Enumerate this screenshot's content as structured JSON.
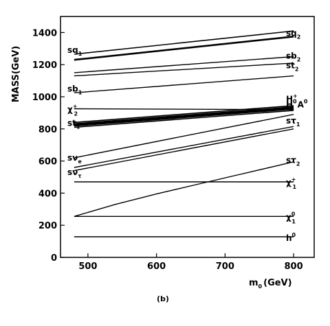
{
  "chart_data": {
    "type": "line",
    "xlabel": "m0 (GeV)",
    "xlabel_parts": {
      "base": "m",
      "sub": "0",
      "rest": "(GeV)"
    },
    "ylabel": "MASS(GeV)",
    "panel_label": "(b)",
    "xlim": [
      460,
      830
    ],
    "ylim": [
      0,
      1500
    ],
    "xticks": [
      500,
      600,
      700,
      800
    ],
    "yticks": [
      0,
      200,
      400,
      600,
      800,
      1000,
      1200,
      1400
    ],
    "grid": false,
    "series": [
      {
        "name": "sq2",
        "x": [
          480,
          800
        ],
        "y": [
          1265,
          1410
        ],
        "lw": 1.6
      },
      {
        "name": "sq1 (b)",
        "x": [
          480,
          800
        ],
        "y": [
          1230,
          1375
        ],
        "lw": 2.6
      },
      {
        "name": "sb2",
        "x": [
          480,
          800
        ],
        "y": [
          1150,
          1250
        ],
        "lw": 1.4
      },
      {
        "name": "st2",
        "x": [
          480,
          800
        ],
        "y": [
          1130,
          1210
        ],
        "lw": 1.4
      },
      {
        "name": "sb1",
        "x": [
          480,
          800
        ],
        "y": [
          1025,
          1130
        ],
        "lw": 1.4
      },
      {
        "name": "chi2+",
        "x": [
          480,
          800
        ],
        "y": [
          925,
          920
        ],
        "lw": 1.4
      },
      {
        "name": "H+",
        "x": [
          480,
          800
        ],
        "y": [
          840,
          945
        ],
        "lw": 1.6
      },
      {
        "name": "H0",
        "x": [
          480,
          800
        ],
        "y": [
          830,
          935
        ],
        "lw": 2.6
      },
      {
        "name": "A0",
        "x": [
          480,
          800
        ],
        "y": [
          820,
          925
        ],
        "lw": 2.6
      },
      {
        "name": "st1",
        "x": [
          480,
          800
        ],
        "y": [
          810,
          915
        ],
        "lw": 1.6
      },
      {
        "name": "stau1",
        "x": [
          480,
          800
        ],
        "y": [
          620,
          890
        ],
        "lw": 1.4
      },
      {
        "name": "snu_e",
        "x": [
          480,
          800
        ],
        "y": [
          560,
          815
        ],
        "lw": 1.4
      },
      {
        "name": "snu_tau",
        "x": [
          480,
          800
        ],
        "y": [
          540,
          800
        ],
        "lw": 1.4
      },
      {
        "name": "stau2",
        "x": [
          480,
          540,
          600,
          660,
          720,
          800
        ],
        "y": [
          255,
          330,
          395,
          455,
          515,
          595
        ],
        "lw": 1.4
      },
      {
        "name": "chi1+",
        "x": [
          480,
          800
        ],
        "y": [
          470,
          470
        ],
        "lw": 1.4
      },
      {
        "name": "chi10",
        "x": [
          480,
          800
        ],
        "y": [
          255,
          255
        ],
        "lw": 1.4
      },
      {
        "name": "h0",
        "x": [
          480,
          800
        ],
        "y": [
          128,
          128
        ],
        "lw": 1.4
      }
    ],
    "left_labels": [
      {
        "id": "sq1",
        "base": "sq",
        "sub": "1",
        "sup": "",
        "y": 1290
      },
      {
        "id": "sb1",
        "base": "sb",
        "sub": "1",
        "sup": "",
        "y": 1050
      },
      {
        "id": "chi2",
        "base": "χ",
        "sub": "2",
        "sup": "+",
        "y": 920
      },
      {
        "id": "st1",
        "base": "st",
        "sub": "1",
        "sup": "",
        "y": 835
      },
      {
        "id": "snu_e",
        "base": "sν",
        "sub": "e",
        "sup": "",
        "y": 620
      },
      {
        "id": "snu_tau",
        "base": "sν",
        "sub": "τ",
        "sup": "",
        "y": 530
      }
    ],
    "right_labels": [
      {
        "id": "sq2",
        "base": "sq",
        "sub": "2",
        "sup": "",
        "y": 1395
      },
      {
        "id": "sb2",
        "base": "sb",
        "sub": "2",
        "sup": "",
        "y": 1255
      },
      {
        "id": "st2",
        "base": "st",
        "sub": "2",
        "sup": "",
        "y": 1195
      },
      {
        "id": "Hplus",
        "base": "H",
        "sub": "",
        "sup": "+",
        "y": 985
      },
      {
        "id": "HA0",
        "base": "H",
        "sub": "",
        "sup": "0",
        "extra": "A",
        "extra_sup": "0",
        "y": 950
      },
      {
        "id": "stau1",
        "base": "sτ",
        "sub": "1",
        "sup": "",
        "y": 850
      },
      {
        "id": "stau2",
        "base": "sτ",
        "sub": "2",
        "sup": "",
        "y": 605
      },
      {
        "id": "chi1plus",
        "base": "χ",
        "sub": "1",
        "sup": "+",
        "y": 465
      },
      {
        "id": "chi10",
        "base": "χ",
        "sub": "1",
        "sup": "0",
        "y": 250
      },
      {
        "id": "h0",
        "base": "h",
        "sub": "",
        "sup": "0",
        "y": 120
      }
    ]
  }
}
